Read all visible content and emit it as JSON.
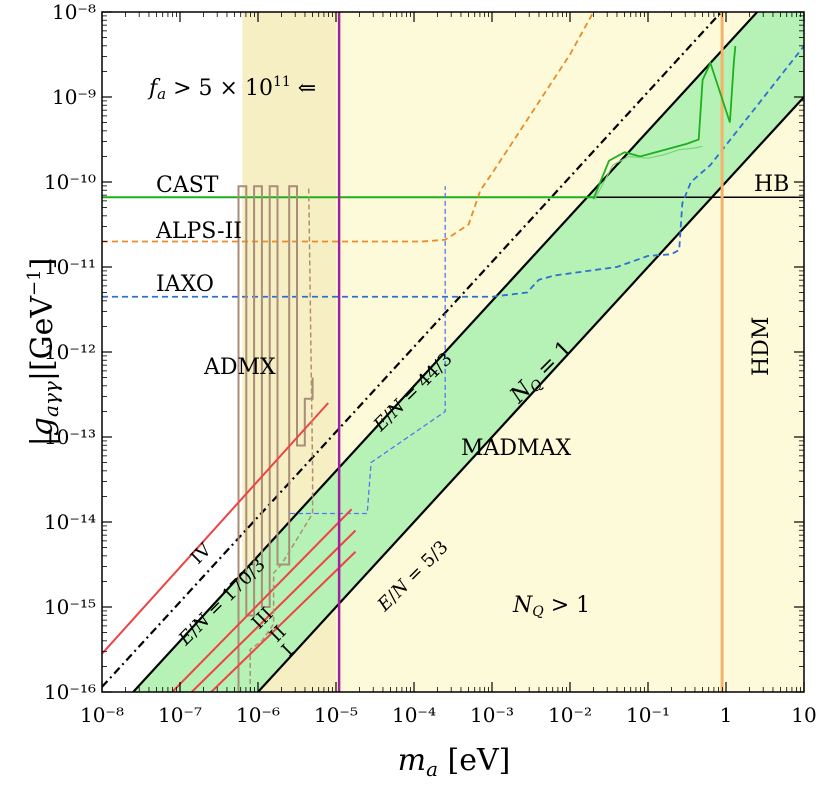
{
  "chart_data": {
    "type": "line",
    "xlabel": "m_a [eV]",
    "ylabel": "|g_aγγ|[GeV⁻¹]",
    "xscale": "log",
    "yscale": "log",
    "xlim": [
      1e-08,
      10
    ],
    "ylim": [
      1e-16,
      1e-08
    ],
    "xticks": [
      -8,
      -7,
      -6,
      -5,
      -4,
      -3,
      -2,
      -1,
      0,
      1
    ],
    "xtick_labels": [
      "10⁻⁸",
      "10⁻⁷",
      "10⁻⁶",
      "10⁻⁵",
      "10⁻⁴",
      "10⁻³",
      "10⁻²",
      "10⁻¹",
      "1",
      "10"
    ],
    "yticks": [
      -16,
      -15,
      -14,
      -13,
      -12,
      -11,
      -10,
      -9,
      -8
    ],
    "ytick_labels": [
      "10⁻¹⁶",
      "10⁻¹⁵",
      "10⁻¹⁴",
      "10⁻¹³",
      "10⁻¹²",
      "10⁻¹¹",
      "10⁻¹⁰",
      "10⁻⁹",
      "10⁻⁸"
    ],
    "colors": {
      "yellow_region": "#fdfad9",
      "yellow_strip": "#f6efc3",
      "green_band": "#b6f2b6",
      "cast": "#1db01d",
      "alps": "#ee8a26",
      "iaxo": "#2f6fd0",
      "madmax": "#5577ee",
      "admx": "#a98d78",
      "admx_dashed": "#b08e6e",
      "red": "#ee4444",
      "purple": "#a020a0",
      "hdm": "#f5b26b",
      "black": "#000000"
    },
    "regions": [
      {
        "id": "nq-gt-1-region",
        "label": "N_Q > 1",
        "log_m_from": -5.0,
        "log_m_to": 1.0
      },
      {
        "id": "nq-1-band",
        "label": "N_Q = 1",
        "between": [
          "E/N = 44/3",
          "E/N = 5/3"
        ]
      }
    ],
    "series": [
      {
        "name": "E/N = 170/3",
        "log_m": [
          -8.0,
          1.0
        ],
        "log_g": [
          -15.94,
          -6.94
        ],
        "style": "dash-dot"
      },
      {
        "name": "E/N = 44/3",
        "log_m": [
          -7.6,
          1.0
        ],
        "log_g": [
          -16.0,
          -7.4
        ],
        "style": "solid"
      },
      {
        "name": "E/N = 5/3",
        "log_m": [
          -6.0,
          1.0
        ],
        "log_g": [
          -16.0,
          -9.0
        ],
        "style": "solid"
      },
      {
        "name": "CAST",
        "log_m": [
          -8.0,
          -1.7
        ],
        "log_g": [
          -10.18,
          -10.18
        ]
      },
      {
        "name": "HB",
        "log_m": [
          -1.7,
          1.0
        ],
        "log_g": [
          -10.18,
          -10.18
        ]
      },
      {
        "name": "ALPS-II",
        "log_m": [
          -8.0,
          -3.9,
          -3.6,
          -3.3,
          -3.15,
          -3.0,
          -2.5,
          -2.0,
          -1.7
        ],
        "log_g": [
          -10.7,
          -10.7,
          -10.68,
          -10.5,
          -10.1,
          -9.9,
          -9.2,
          -8.5,
          -8.0
        ]
      },
      {
        "name": "IAXO",
        "log_m": [
          -8.0,
          -3.0,
          -2.55,
          -2.4,
          -2.2,
          -1.4,
          -1.0,
          -0.7,
          -0.6,
          -0.56,
          -0.45,
          -0.2,
          1.0
        ],
        "log_g": [
          -11.35,
          -11.35,
          -11.3,
          -11.15,
          -11.1,
          -11.0,
          -10.87,
          -10.85,
          -10.8,
          -10.25,
          -10.0,
          -9.8,
          -8.4
        ]
      },
      {
        "name": "MADMAX",
        "log_m": [
          -5.6,
          -5.6,
          -4.6,
          -4.55,
          -3.6,
          -3.6,
          -3.6
        ],
        "log_g": [
          -10.05,
          -13.9,
          -13.9,
          -13.3,
          -12.7,
          -12.7,
          -10.05
        ]
      },
      {
        "name": "ADMX",
        "log_m": [
          -6.25,
          -6.25,
          -6.15,
          -6.15,
          -6.05,
          -6.05,
          -5.95,
          -5.95,
          -5.85,
          -5.85,
          -5.75,
          -5.75,
          -5.6,
          -5.6,
          -5.5,
          -5.5,
          -5.4,
          -5.4,
          -5.3,
          -5.3
        ],
        "log_g": [
          -16.0,
          -10.05,
          -10.05,
          -15.1,
          -15.1,
          -10.05,
          -10.05,
          -15.0,
          -15.0,
          -10.05,
          -10.05,
          -14.5,
          -14.5,
          -10.05,
          -10.05,
          -13.1,
          -13.1,
          -12.55,
          -12.55,
          -12.3
        ]
      },
      {
        "name": "IV",
        "log_m": [
          -8.0,
          -5.1
        ],
        "log_g": [
          -15.55,
          -12.6
        ]
      },
      {
        "name": "III",
        "log_m": [
          -7.1,
          -4.8
        ],
        "log_g": [
          -16.0,
          -13.85
        ]
      },
      {
        "name": "II",
        "log_m": [
          -6.85,
          -4.75
        ],
        "log_g": [
          -16.0,
          -14.1
        ]
      },
      {
        "name": "I",
        "log_m": [
          -6.6,
          -4.75
        ],
        "log_g": [
          -16.0,
          -14.35
        ]
      },
      {
        "name": "HDM",
        "log_m": [
          -0.05,
          -0.05
        ],
        "log_g": [
          -16.0,
          -8.0
        ]
      },
      {
        "name": "f_a > 5 × 10¹¹",
        "log_m": [
          -4.96,
          -4.96
        ],
        "log_g": [
          -16.0,
          -8.0
        ]
      },
      {
        "name": "green-measurement",
        "log_m": [
          -1.7,
          -1.5,
          -1.3,
          -1.1,
          -0.9,
          -0.7,
          -0.5,
          -0.35,
          -0.3,
          -0.2,
          0.05,
          0.1,
          0.12
        ],
        "log_g": [
          -10.2,
          -9.75,
          -9.65,
          -9.7,
          -9.65,
          -9.6,
          -9.55,
          -9.5,
          -8.8,
          -8.6,
          -9.3,
          -8.6,
          -8.4
        ]
      }
    ],
    "annotations": {
      "fa_label": "f_a > 5 × 10¹¹ ⇐",
      "cast": "CAST",
      "alps": "ALPS-II",
      "iaxo": "IAXO",
      "admx": "ADMX",
      "madmax": "MADMAX",
      "hb": "HB",
      "hdm": "HDM",
      "nq1": "N_Q = 1",
      "nqgt1": "N_Q > 1",
      "en_44_3": "E/N = 44/3",
      "en_5_3": "E/N = 5/3",
      "en_170_3": "E/N = 170/3",
      "roman_iv": "IV",
      "roman_iii": "III",
      "roman_ii": "II",
      "roman_i": "I"
    }
  }
}
